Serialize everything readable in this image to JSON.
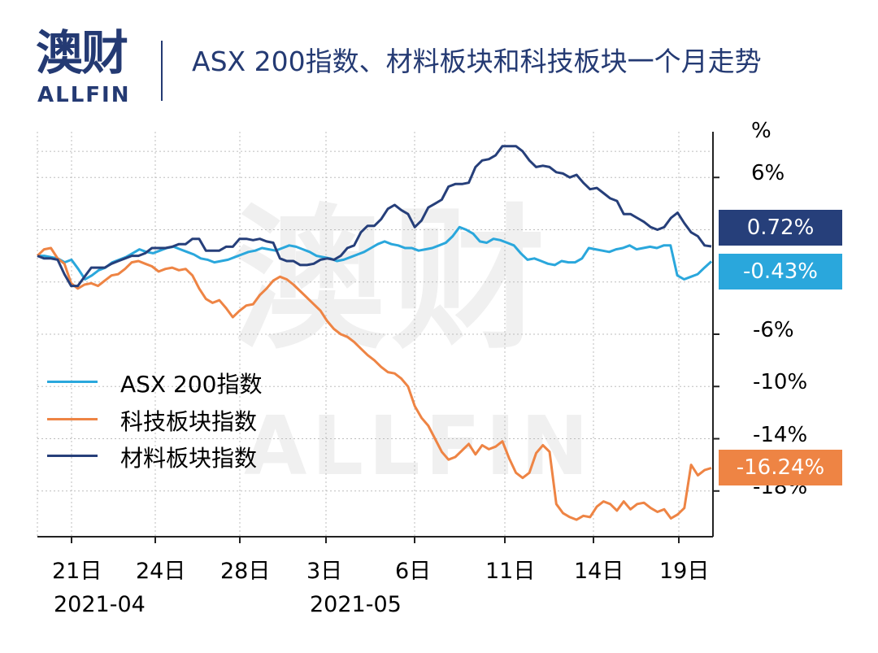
{
  "logo": {
    "cn": "澳财",
    "en": "ALLFIN"
  },
  "title": "ASX 200指数、材料板块和科技板块一个月走势",
  "watermark": {
    "cn": "澳财",
    "en": "ALLFIN"
  },
  "colors": {
    "asx": "#2aa7dc",
    "tech": "#ee8444",
    "materials": "#263f7a",
    "grid": "#bdbdbd",
    "axis": "#222222"
  },
  "chart_data": {
    "type": "line",
    "xlabel": "",
    "ylabel": "%",
    "y_tick_labels": [
      "6%",
      "-6%",
      "-10%",
      "-14%",
      "-18%"
    ],
    "y_ticks": [
      6,
      -6,
      -10,
      -14,
      -18
    ],
    "ylim": [
      -21.5,
      9.5
    ],
    "x_tick_labels": [
      "21日",
      "24日",
      "28日",
      "3日",
      "6日",
      "11日",
      "14日",
      "19日"
    ],
    "month_labels": [
      "2021-04",
      "2021-05"
    ],
    "grid": true,
    "legend_placement": "left-middle",
    "series": [
      {
        "name": "ASX 200指数",
        "key": "asx",
        "end_label": "-0.43%",
        "values": [
          0,
          0,
          -0.1,
          -0.2,
          -0.5,
          -0.3,
          -1,
          -1.8,
          -1.5,
          -1.1,
          -0.9,
          -0.5,
          -0.3,
          -0.1,
          0.2,
          0.5,
          0.3,
          0.2,
          0.4,
          0.6,
          0.7,
          0.5,
          0.3,
          0.1,
          -0.2,
          -0.3,
          -0.5,
          -0.4,
          -0.3,
          -0.1,
          0.1,
          0.3,
          0.4,
          0.6,
          0.5,
          0.4,
          0.6,
          0.8,
          0.7,
          0.5,
          0.3,
          0,
          -0.1,
          -0.2,
          -0.4,
          -0.3,
          -0.1,
          0.1,
          0.3,
          0.6,
          0.9,
          1.1,
          0.9,
          0.8,
          0.6,
          0.6,
          0.4,
          0.5,
          0.6,
          0.8,
          1.0,
          1.5,
          2.2,
          2.0,
          1.7,
          1.1,
          1.0,
          1.3,
          1.2,
          1.0,
          0.8,
          0.2,
          -0.3,
          -0.2,
          -0.4,
          -0.6,
          -0.7,
          -0.4,
          -0.5,
          -0.5,
          -0.2,
          0.6,
          0.5,
          0.4,
          0.3,
          0.5,
          0.6,
          0.8,
          0.5,
          0.6,
          0.7,
          0.6,
          0.8,
          0.8,
          -1.5,
          -1.8,
          -1.6,
          -1.4,
          -0.9,
          -0.43
        ]
      },
      {
        "name": "科技板块指数",
        "key": "tech",
        "end_label": "-16.24%",
        "values": [
          0,
          0.5,
          0.6,
          -0.2,
          -0.6,
          -2.1,
          -2.5,
          -2.2,
          -2.1,
          -2.3,
          -1.9,
          -1.5,
          -1.4,
          -1.0,
          -0.5,
          -0.4,
          -0.6,
          -0.8,
          -1.2,
          -1.0,
          -0.9,
          -1.1,
          -1.0,
          -1.5,
          -2.5,
          -3.3,
          -3.6,
          -3.4,
          -4.0,
          -4.7,
          -4.2,
          -3.8,
          -3.7,
          -3.0,
          -2.5,
          -1.9,
          -1.6,
          -1.8,
          -2.2,
          -2.7,
          -3.2,
          -3.7,
          -4.2,
          -5.0,
          -5.6,
          -6.0,
          -6.2,
          -6.6,
          -7.1,
          -7.6,
          -8.0,
          -8.5,
          -8.9,
          -9.0,
          -9.4,
          -10.0,
          -11.5,
          -12.4,
          -13.0,
          -14.0,
          -15.0,
          -15.6,
          -15.4,
          -14.9,
          -14.4,
          -15.2,
          -14.5,
          -14.8,
          -14.6,
          -14.2,
          -15.5,
          -16.6,
          -17.0,
          -16.6,
          -15.1,
          -14.5,
          -15.0,
          -19.0,
          -19.7,
          -20.0,
          -20.2,
          -19.9,
          -20.0,
          -19.2,
          -18.8,
          -19.0,
          -19.5,
          -18.8,
          -19.4,
          -19.0,
          -18.9,
          -19.3,
          -19.6,
          -19.4,
          -20.1,
          -19.8,
          -19.3,
          -16.0,
          -16.8,
          -16.4,
          -16.24
        ]
      },
      {
        "name": "材料板块指数",
        "key": "materials",
        "end_label": "0.72%",
        "values": [
          0,
          -0.2,
          -0.2,
          -0.3,
          -1.4,
          -2.3,
          -2.3,
          -1.6,
          -0.9,
          -0.9,
          -0.9,
          -0.6,
          -0.4,
          -0.2,
          0,
          0,
          0.2,
          0.6,
          0.6,
          0.6,
          0.7,
          0.9,
          0.9,
          1.3,
          1.3,
          0.4,
          0.4,
          0.4,
          0.7,
          0.7,
          1.3,
          1.3,
          1.2,
          1.3,
          1.1,
          1.0,
          -0.2,
          -0.4,
          -0.4,
          -0.7,
          -0.7,
          -0.6,
          -0.3,
          -0.2,
          -0.3,
          0.0,
          0.6,
          0.8,
          1.8,
          2.3,
          2.3,
          2.8,
          3.6,
          3.9,
          3.5,
          3.2,
          2.2,
          2.7,
          3.7,
          4.0,
          4.3,
          5.3,
          5.5,
          5.5,
          5.6,
          6.8,
          7.3,
          7.4,
          7.7,
          8.4,
          8.4,
          8.4,
          8.0,
          7.3,
          6.8,
          6.9,
          6.8,
          6.4,
          6.3,
          6.0,
          6.2,
          5.6,
          5.1,
          5.2,
          4.8,
          4.4,
          4.2,
          3.2,
          3.2,
          2.9,
          2.6,
          2.2,
          2.0,
          2.2,
          2.9,
          3.3,
          2.5,
          1.8,
          1.5,
          0.8,
          0.72
        ]
      }
    ]
  }
}
